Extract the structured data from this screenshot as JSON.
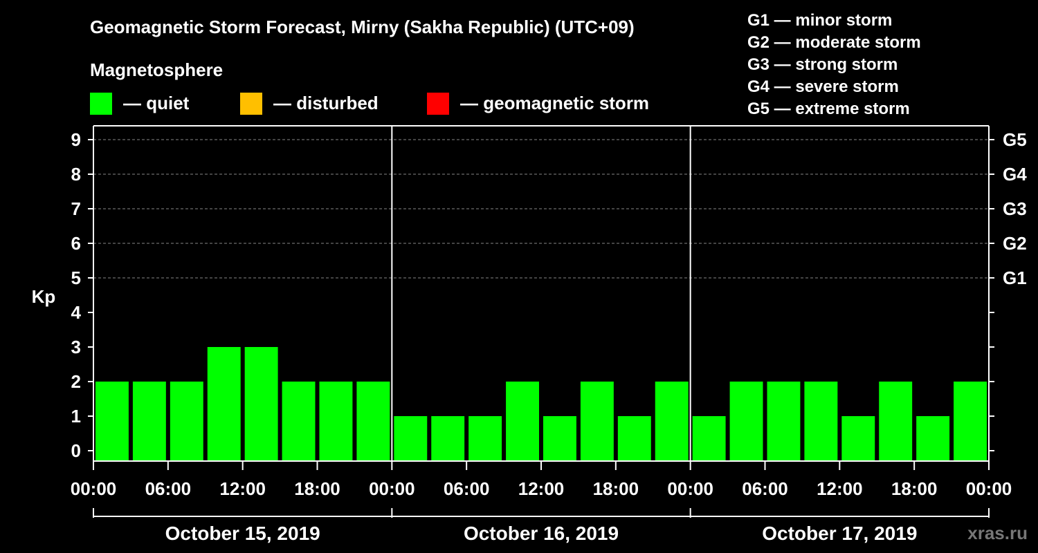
{
  "chart_data": {
    "type": "bar",
    "title": "Geomagnetic Storm Forecast, Mirny (Sakha Republic) (UTC+09)",
    "ylabel": "Kp",
    "ylim": [
      0,
      9
    ],
    "yticks": [
      "0",
      "1",
      "2",
      "3",
      "4",
      "5",
      "6",
      "7",
      "8",
      "9"
    ],
    "g_ticks": [
      {
        "value": 5,
        "label": "G1"
      },
      {
        "value": 6,
        "label": "G2"
      },
      {
        "value": 7,
        "label": "G3"
      },
      {
        "value": 8,
        "label": "G4"
      },
      {
        "value": 9,
        "label": "G5"
      }
    ],
    "legend_title": "Magnetosphere",
    "legend": [
      {
        "label": "— quiet",
        "color": "#00ff00"
      },
      {
        "label": "— disturbed",
        "color": "#ffbf00"
      },
      {
        "label": "— geomagnetic storm",
        "color": "#ff0000"
      }
    ],
    "scale_legend": [
      "G1 — minor storm",
      "G2 — moderate storm",
      "G3 — strong storm",
      "G4 — severe storm",
      "G5 — extreme storm"
    ],
    "x_tick_labels": [
      "00:00",
      "06:00",
      "12:00",
      "18:00",
      "00:00",
      "06:00",
      "12:00",
      "18:00",
      "00:00",
      "06:00",
      "12:00",
      "18:00",
      "00:00"
    ],
    "days": [
      "October 15, 2019",
      "October 16, 2019",
      "October 17, 2019"
    ],
    "interval_hours": 3,
    "values": [
      2,
      2,
      2,
      3,
      3,
      2,
      2,
      2,
      1,
      1,
      1,
      2,
      1,
      2,
      1,
      2,
      1,
      2,
      2,
      2,
      1,
      2,
      1,
      2
    ],
    "bar_color": "#00ff00",
    "grid": true
  },
  "watermark": "xras.ru"
}
